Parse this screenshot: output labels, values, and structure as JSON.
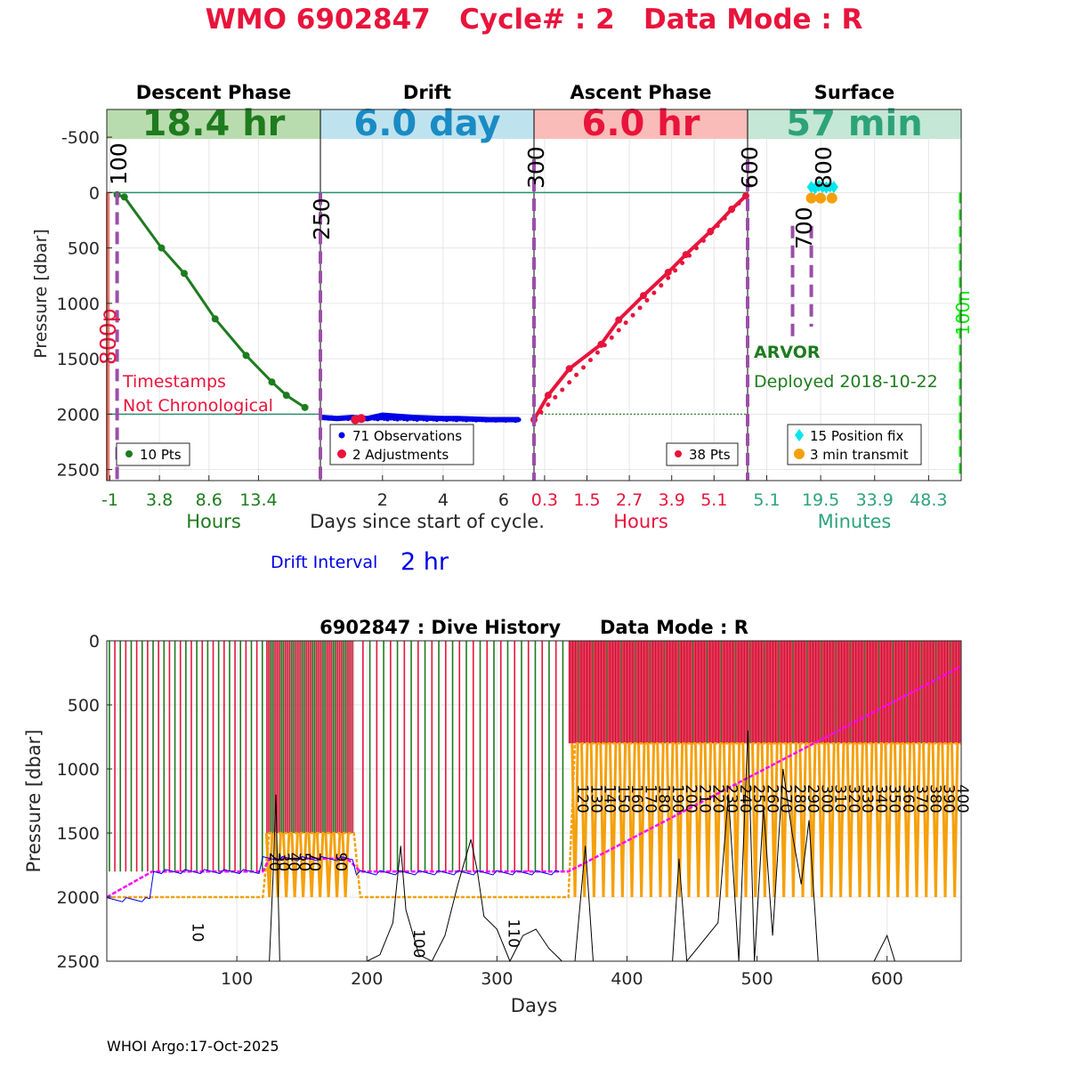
{
  "header": {
    "title": "WMO 6902847   Cycle# : 2   Data Mode : R"
  },
  "colors": {
    "descent": "#1e7b1e",
    "drift": "#0000e6",
    "ascent": "#e8143c",
    "surface": "#2ca37a",
    "adjust": "#e8143c",
    "position_fix": "#00e5ee",
    "transmit": "#f5a00a",
    "marker": "#9b4ea8",
    "park": "#ff00ff"
  },
  "chart_data": [
    {
      "type": "line",
      "title": "WMO 6902847   Cycle# : 2   Data Mode : R",
      "ylabel": "Pressure [dbar]",
      "xlabel": "Days since start of cycle.",
      "ylim": [
        2600,
        -750
      ],
      "yticks": [
        -500,
        0,
        500,
        1000,
        1500,
        2000,
        2500
      ],
      "phases": [
        {
          "key": "descent",
          "name": "Descent Phase",
          "duration": "18.4 hr",
          "unit_label": "Hours",
          "ticks": [
            "-1",
            "3.8",
            "8.6",
            "13.4"
          ],
          "color": "#1e7b1e",
          "band": "#b9dcae"
        },
        {
          "key": "drift",
          "name": "Drift",
          "duration": "6.0 day",
          "unit_label": "Days since start of cycle.",
          "ticks": [
            "2",
            "4",
            "6"
          ],
          "color": "#1a8bc4",
          "band": "#bfe3ee"
        },
        {
          "key": "ascent",
          "name": "Ascent Phase",
          "duration": "6.0 hr",
          "unit_label": "Hours",
          "ticks": [
            "0.3",
            "1.5",
            "2.7",
            "3.9",
            "5.1"
          ],
          "color": "#e8143c",
          "band": "#f9bcb8"
        },
        {
          "key": "surface",
          "name": "Surface",
          "duration": "57 min",
          "unit_label": "Minutes",
          "ticks": [
            "5.1",
            "19.5",
            "33.9",
            "48.3"
          ],
          "color": "#2ca37a",
          "band": "#c5e7d5"
        }
      ],
      "descent_profile": {
        "hours": [
          -0.3,
          0.4,
          4,
          6.2,
          9.2,
          12.2,
          14.7,
          16.1,
          17.9
        ],
        "pressure": [
          20,
          40,
          500,
          730,
          1140,
          1470,
          1710,
          1830,
          1940
        ]
      },
      "drift_profile": {
        "days": [
          0.0,
          0.5,
          1.0,
          1.5,
          2.0,
          2.5,
          3.0,
          3.5,
          4.0,
          4.5,
          5.0,
          5.5,
          6.0,
          6.5
        ],
        "pressure": [
          2030,
          2040,
          2030,
          2040,
          2010,
          2020,
          2030,
          2035,
          2040,
          2040,
          2045,
          2050,
          2050,
          2050
        ],
        "adjustments_days": [
          1.1,
          1.3
        ],
        "adjustments_pressure": [
          2050,
          2040
        ]
      },
      "ascent_profile": {
        "hours": [
          0,
          0.4,
          1,
          1.9,
          2.4,
          3.1,
          3.8,
          4.3,
          5,
          5.6,
          6
        ],
        "pressure": [
          2050,
          1830,
          1590,
          1370,
          1150,
          930,
          720,
          560,
          350,
          150,
          30
        ]
      },
      "surface": {
        "position_fix_minutes": [
          17,
          18,
          19,
          20,
          21,
          22,
          23
        ],
        "position_fix_pressure": [
          -50,
          -40,
          -60,
          -50,
          -45,
          -55,
          -50
        ],
        "transmit_minutes": [
          17,
          19.5,
          22.5
        ],
        "transmit_pressure": [
          50,
          50,
          50
        ]
      },
      "pressure_lines": [
        0,
        2000
      ],
      "marker_labels": {
        "m100": "100",
        "m250": "250",
        "m300": "300",
        "m600": "600",
        "m700": "700",
        "m800": "800",
        "m800p": "800p",
        "m100n": "100n"
      },
      "legends": {
        "descent": "10 Pts",
        "drift_obs": "71 Observations",
        "drift_adj": "2 Adjustments",
        "ascent": "38 Pts",
        "position_fix": "15 Position fix",
        "transmit": "3 min transmit"
      },
      "annotations": {
        "timestamps_line1": "Timestamps",
        "timestamps_line2": "Not Chronological",
        "float_type": "ARVOR",
        "deployed": "Deployed 2018-10-22",
        "drift_interval_label": "Drift Interval",
        "drift_interval_value": "2 hr"
      }
    },
    {
      "type": "line",
      "title": "6902847 : Dive History      Data Mode : R",
      "xlabel": "Days",
      "ylabel": "Pressure [dbar]",
      "xlim": [
        0,
        657
      ],
      "ylim": [
        2500,
        0
      ],
      "xticks": [
        100,
        200,
        300,
        400,
        500,
        600
      ],
      "yticks": [
        0,
        500,
        1000,
        1500,
        2000,
        2500
      ],
      "cycle_labels": [
        "10",
        "20",
        "30",
        "40",
        "50",
        "70",
        "90",
        "100",
        "110",
        "120",
        "130",
        "140",
        "150",
        "160",
        "170",
        "180",
        "190",
        "200",
        "210",
        "220",
        "230",
        "240",
        "250",
        "260",
        "270",
        "280",
        "290",
        "300",
        "310",
        "320",
        "330",
        "340",
        "350",
        "360",
        "370",
        "380",
        "390",
        "400"
      ],
      "park_pressure": {
        "days": [
          0,
          35,
          120,
          125,
          185,
          195,
          355,
          657
        ],
        "pressure": [
          2000,
          1800,
          1800,
          1700,
          1700,
          1800,
          1800,
          200
        ]
      },
      "profile_depth": {
        "days": [
          0,
          120,
          125,
          190,
          195,
          355,
          360,
          657
        ],
        "pressure": [
          2000,
          2000,
          1500,
          1500,
          2000,
          2000,
          800,
          800
        ]
      },
      "bathymetry": {
        "days": [
          125,
          128,
          130,
          133,
          136,
          140,
          150,
          170,
          190,
          200,
          210,
          220,
          226,
          230,
          240,
          250,
          260,
          270,
          280,
          285,
          290,
          300,
          310,
          320,
          330,
          340,
          350
        ],
        "pressure": [
          2500,
          1800,
          1200,
          2500,
          2500,
          2500,
          2500,
          2500,
          2500,
          2500,
          2450,
          2200,
          1600,
          2100,
          2450,
          2500,
          2300,
          1900,
          1550,
          1800,
          2150,
          2250,
          2500,
          2300,
          2250,
          2400,
          2500
        ]
      }
    }
  ],
  "footer": {
    "text": "WHOI Argo:17-Oct-2025"
  }
}
